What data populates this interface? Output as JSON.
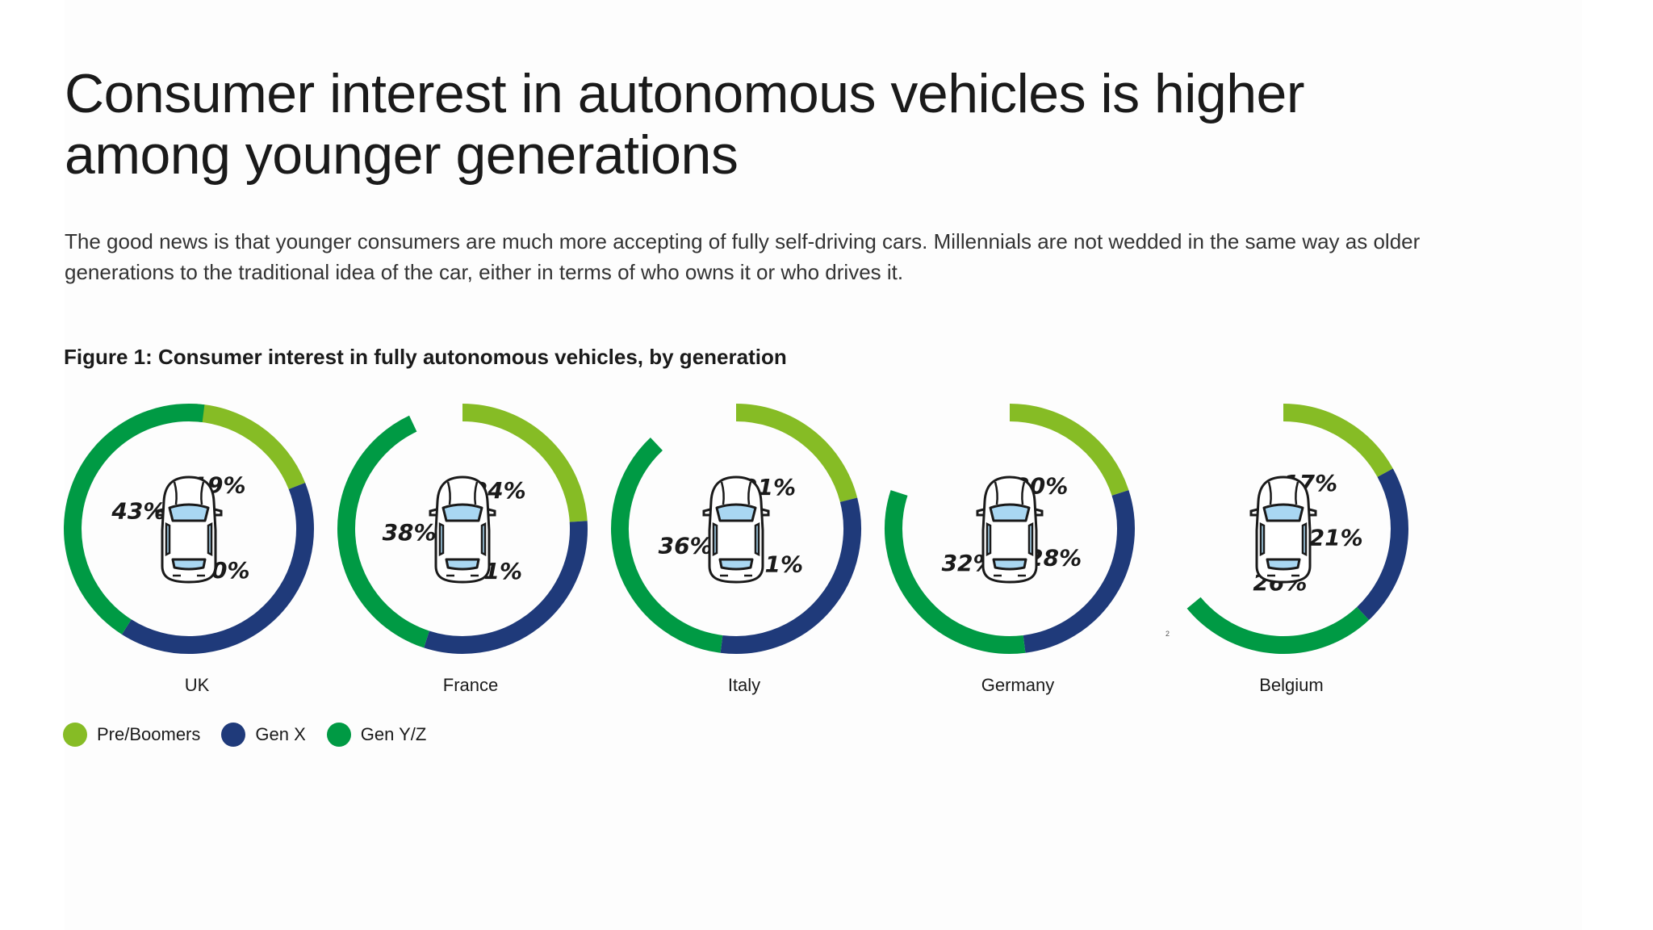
{
  "headline": "Consumer interest in autonomous vehicles is higher among younger generations",
  "intro": "The good news is that younger consumers are much more accepting of fully self-driving cars. Millennials are not wedded in the same way as older generations to the traditional idea of the car, either in terms of who owns it or who drives it.",
  "figure_title": "Figure 1: Consumer interest in fully autonomous vehicles, by generation",
  "footnote_marker": "2",
  "colors": {
    "Pre/Boomers": "#86bc25",
    "Gen X": "#1f3a7a",
    "Gen Y/Z": "#009a44"
  },
  "chart_data": {
    "type": "pie",
    "title": "Figure 1: Consumer interest in fully autonomous vehicles, by generation",
    "series_names": [
      "Pre/Boomers",
      "Gen X",
      "Gen Y/Z"
    ],
    "countries": [
      {
        "name": "UK",
        "values": {
          "Pre/Boomers": 19,
          "Gen X": 40,
          "Gen Y/Z": 43
        }
      },
      {
        "name": "France",
        "values": {
          "Pre/Boomers": 24,
          "Gen X": 31,
          "Gen Y/Z": 38
        }
      },
      {
        "name": "Italy",
        "values": {
          "Pre/Boomers": 21,
          "Gen X": 31,
          "Gen Y/Z": 36
        }
      },
      {
        "name": "Germany",
        "values": {
          "Pre/Boomers": 20,
          "Gen X": 28,
          "Gen Y/Z": 32
        }
      },
      {
        "name": "Belgium",
        "values": {
          "Pre/Boomers": 17,
          "Gen X": 21,
          "Gen Y/Z": 26
        }
      }
    ],
    "legend_position": "bottom-left"
  },
  "legend": [
    {
      "label": "Pre/Boomers"
    },
    {
      "label": "Gen X"
    },
    {
      "label": "Gen Y/Z"
    }
  ]
}
